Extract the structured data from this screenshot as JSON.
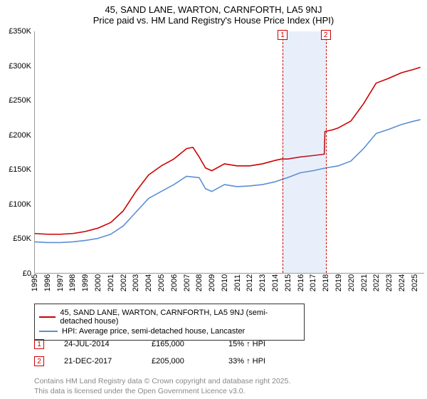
{
  "title": {
    "main": "45, SAND LANE, WARTON, CARNFORTH, LA5 9NJ",
    "sub": "Price paid vs. HM Land Registry's House Price Index (HPI)"
  },
  "chart": {
    "type": "line",
    "background_color": "#ffffff",
    "grid_color": "#e0e0e0",
    "axis_color": "#999999",
    "x_years": [
      1995,
      1996,
      1997,
      1998,
      1999,
      2000,
      2001,
      2002,
      2003,
      2004,
      2005,
      2006,
      2007,
      2008,
      2009,
      2010,
      2011,
      2012,
      2013,
      2014,
      2015,
      2016,
      2017,
      2018,
      2019,
      2020,
      2021,
      2022,
      2023,
      2024,
      2025
    ],
    "y_ticks": [
      "£0",
      "£50K",
      "£100K",
      "£150K",
      "£200K",
      "£250K",
      "£300K",
      "£350K"
    ],
    "ylim": [
      0,
      350000
    ],
    "xlim": [
      1995,
      2025.8
    ],
    "label_fontsize": 11,
    "series": [
      {
        "name": "price_paid",
        "label": "45, SAND LANE, WARTON, CARNFORTH, LA5 9NJ (semi-detached house)",
        "color": "#cc0000",
        "line_width": 1.6,
        "points": [
          [
            1995,
            57000
          ],
          [
            1996,
            56000
          ],
          [
            1997,
            56000
          ],
          [
            1998,
            57000
          ],
          [
            1999,
            60000
          ],
          [
            2000,
            65000
          ],
          [
            2001,
            73000
          ],
          [
            2002,
            90000
          ],
          [
            2003,
            118000
          ],
          [
            2004,
            142000
          ],
          [
            2005,
            155000
          ],
          [
            2006,
            165000
          ],
          [
            2007,
            180000
          ],
          [
            2007.5,
            182000
          ],
          [
            2008,
            168000
          ],
          [
            2008.5,
            152000
          ],
          [
            2009,
            148000
          ],
          [
            2010,
            158000
          ],
          [
            2011,
            155000
          ],
          [
            2012,
            155000
          ],
          [
            2013,
            158000
          ],
          [
            2014,
            163000
          ],
          [
            2014.5,
            165000
          ],
          [
            2015,
            165000
          ],
          [
            2016,
            168000
          ],
          [
            2017,
            170000
          ],
          [
            2017.9,
            172000
          ],
          [
            2017.95,
            205000
          ],
          [
            2018.5,
            207000
          ],
          [
            2019,
            210000
          ],
          [
            2020,
            220000
          ],
          [
            2021,
            245000
          ],
          [
            2022,
            275000
          ],
          [
            2023,
            282000
          ],
          [
            2024,
            290000
          ],
          [
            2025,
            295000
          ],
          [
            2025.5,
            298000
          ]
        ]
      },
      {
        "name": "hpi",
        "label": "HPI: Average price, semi-detached house, Lancaster",
        "color": "#5b8fd4",
        "line_width": 1.6,
        "points": [
          [
            1995,
            45000
          ],
          [
            1996,
            44000
          ],
          [
            1997,
            44000
          ],
          [
            1998,
            45000
          ],
          [
            1999,
            47000
          ],
          [
            2000,
            50000
          ],
          [
            2001,
            56000
          ],
          [
            2002,
            68000
          ],
          [
            2003,
            88000
          ],
          [
            2004,
            108000
          ],
          [
            2005,
            118000
          ],
          [
            2006,
            128000
          ],
          [
            2007,
            140000
          ],
          [
            2008,
            138000
          ],
          [
            2008.5,
            122000
          ],
          [
            2009,
            118000
          ],
          [
            2010,
            128000
          ],
          [
            2011,
            125000
          ],
          [
            2012,
            126000
          ],
          [
            2013,
            128000
          ],
          [
            2014,
            132000
          ],
          [
            2015,
            138000
          ],
          [
            2016,
            145000
          ],
          [
            2017,
            148000
          ],
          [
            2018,
            152000
          ],
          [
            2019,
            155000
          ],
          [
            2020,
            162000
          ],
          [
            2021,
            180000
          ],
          [
            2022,
            202000
          ],
          [
            2023,
            208000
          ],
          [
            2024,
            215000
          ],
          [
            2025,
            220000
          ],
          [
            2025.5,
            222000
          ]
        ]
      }
    ],
    "markers": [
      {
        "num": "1",
        "date": "24-JUL-2014",
        "x": 2014.56,
        "price": "£165,000",
        "delta": "15% ↑ HPI"
      },
      {
        "num": "2",
        "date": "21-DEC-2017",
        "x": 2017.97,
        "price": "£205,000",
        "delta": "33% ↑ HPI"
      }
    ],
    "marker_line_color": "#cc0000",
    "marker_band_color": "rgba(100,150,220,0.15)"
  },
  "legend": {
    "rows": [
      {
        "color": "#cc0000",
        "text": "45, SAND LANE, WARTON, CARNFORTH, LA5 9NJ (semi-detached house)"
      },
      {
        "color": "#5b8fd4",
        "text": "HPI: Average price, semi-detached house, Lancaster"
      }
    ]
  },
  "attribution": {
    "line1": "Contains HM Land Registry data © Crown copyright and database right 2025.",
    "line2": "This data is licensed under the Open Government Licence v3.0."
  }
}
